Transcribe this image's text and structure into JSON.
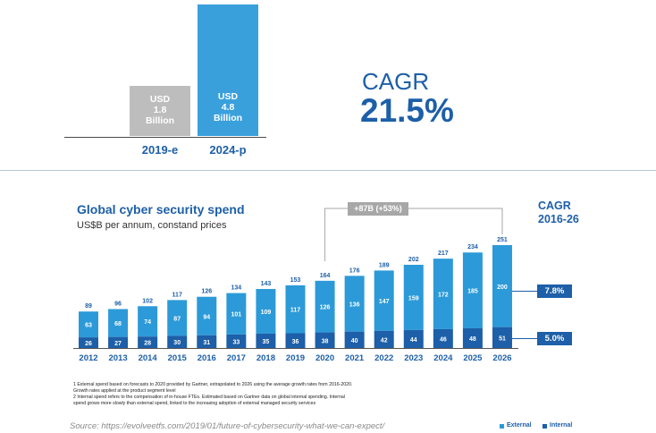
{
  "top_chart": {
    "bars": [
      {
        "year": "2019-e",
        "label": "USD\n1.8\nBillion",
        "value": 1.8,
        "color": "#bdbdbd"
      },
      {
        "year": "2024-p",
        "label": "USD\n4.8\nBillion",
        "value": 4.8,
        "color": "#3aa0dc"
      }
    ],
    "cagr_label": "CAGR",
    "cagr_value": "21.5%"
  },
  "chart_data": {
    "type": "bar",
    "title": "Global cyber security spend",
    "subtitle": "US$B per annum, constand prices",
    "categories": [
      "2012",
      "2013",
      "2014",
      "2015",
      "2016",
      "2017",
      "2018",
      "2019",
      "2020",
      "2021",
      "2022",
      "2023",
      "2024",
      "2025",
      "2026"
    ],
    "series": [
      {
        "name": "Internal",
        "values": [
          26,
          27,
          28,
          30,
          31,
          33,
          35,
          36,
          38,
          40,
          42,
          44,
          46,
          48,
          51
        ],
        "color": "#1d5fa8"
      },
      {
        "name": "External",
        "values": [
          63,
          68,
          74,
          87,
          94,
          101,
          109,
          117,
          126,
          136,
          147,
          159,
          172,
          185,
          200
        ],
        "color": "#2c9ad8"
      }
    ],
    "totals": [
      89,
      96,
      102,
      117,
      126,
      134,
      143,
      153,
      164,
      176,
      189,
      202,
      217,
      234,
      251
    ],
    "stacked": true,
    "annotation": "+87B (+53%)",
    "cagr_title": "CAGR\n2016-26",
    "cagr_external": "7.8%",
    "cagr_internal": "5.0%",
    "legend": [
      {
        "label": "External",
        "color": "#2c9ad8"
      },
      {
        "label": "Internal",
        "color": "#1d5fa8"
      }
    ],
    "legend_position": "bottom-right"
  },
  "footnotes": "1 External spend based on forecasts to 2020 provided by Gartner, extrapolated to 2026 using the average growth rates from 2016-2020.\nGrowth rates applied at the product segment level\n2 Internal spend refers to the compensation of in-house FTEs. Estimated based on Gartner data on global internal spending. Internal\nspend grows more slowly than external spend, linked to the increasing adoption of external managed security services",
  "source": "Source: https://evolveetfs.com/2019/01/future-of-cybersecurity-what-we-can-expect/"
}
